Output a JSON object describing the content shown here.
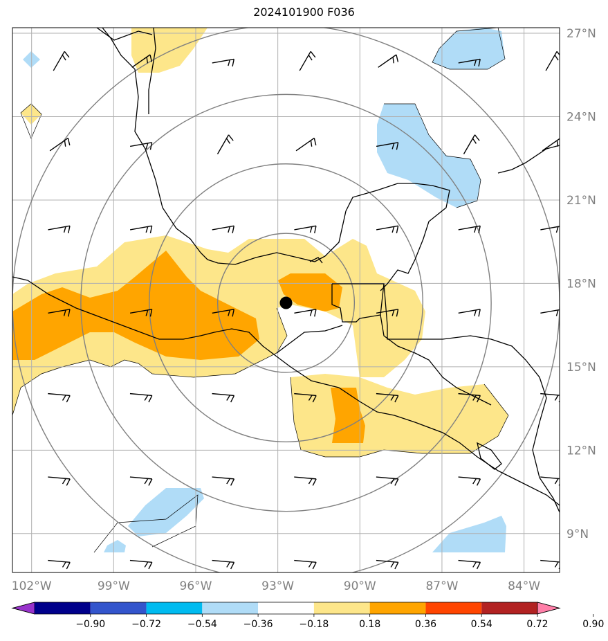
{
  "title": "2024101900 F036",
  "map": {
    "extent": {
      "lon_min": -102.7,
      "lon_max": -82.7,
      "lat_min": 7.6,
      "lat_max": 27.2
    },
    "lat_ticks": [
      {
        "value": 27,
        "label": "27°N"
      },
      {
        "value": 24,
        "label": "24°N"
      },
      {
        "value": 21,
        "label": "21°N"
      },
      {
        "value": 18,
        "label": "18°N"
      },
      {
        "value": 15,
        "label": "15°N"
      },
      {
        "value": 12,
        "label": "12°N"
      },
      {
        "value": 9,
        "label": "9°N"
      }
    ],
    "lon_ticks": [
      {
        "value": -102,
        "label": "102°W"
      },
      {
        "value": -99,
        "label": "99°W"
      },
      {
        "value": -96,
        "label": "96°W"
      },
      {
        "value": -93,
        "label": "93°W"
      },
      {
        "value": -90,
        "label": "90°W"
      },
      {
        "value": -87,
        "label": "87°W"
      },
      {
        "value": -84,
        "label": "84°W"
      }
    ],
    "storm_center": {
      "lon": -92.7,
      "lat": 17.3
    },
    "range_rings_deg": [
      2.5,
      5.0,
      7.5,
      10.0
    ]
  },
  "colorbar": {
    "colors": [
      "#9933cc",
      "#00008b",
      "#3355cc",
      "#00bbf0",
      "#b0dcf7",
      "#ffffff",
      "#fde68a",
      "#ffa500",
      "#ff4500",
      "#b22222",
      "#ff7fa8"
    ],
    "tick_labels": [
      "−0.90",
      "−0.72",
      "−0.54",
      "−0.36",
      "−0.18",
      "0.18",
      "0.36",
      "0.54",
      "0.72",
      "0.90"
    ],
    "extend": "both"
  },
  "colors": {
    "grid": "#b0b0b0",
    "rings": "#808080",
    "coast": "#000000",
    "axis_label": "#808080"
  }
}
